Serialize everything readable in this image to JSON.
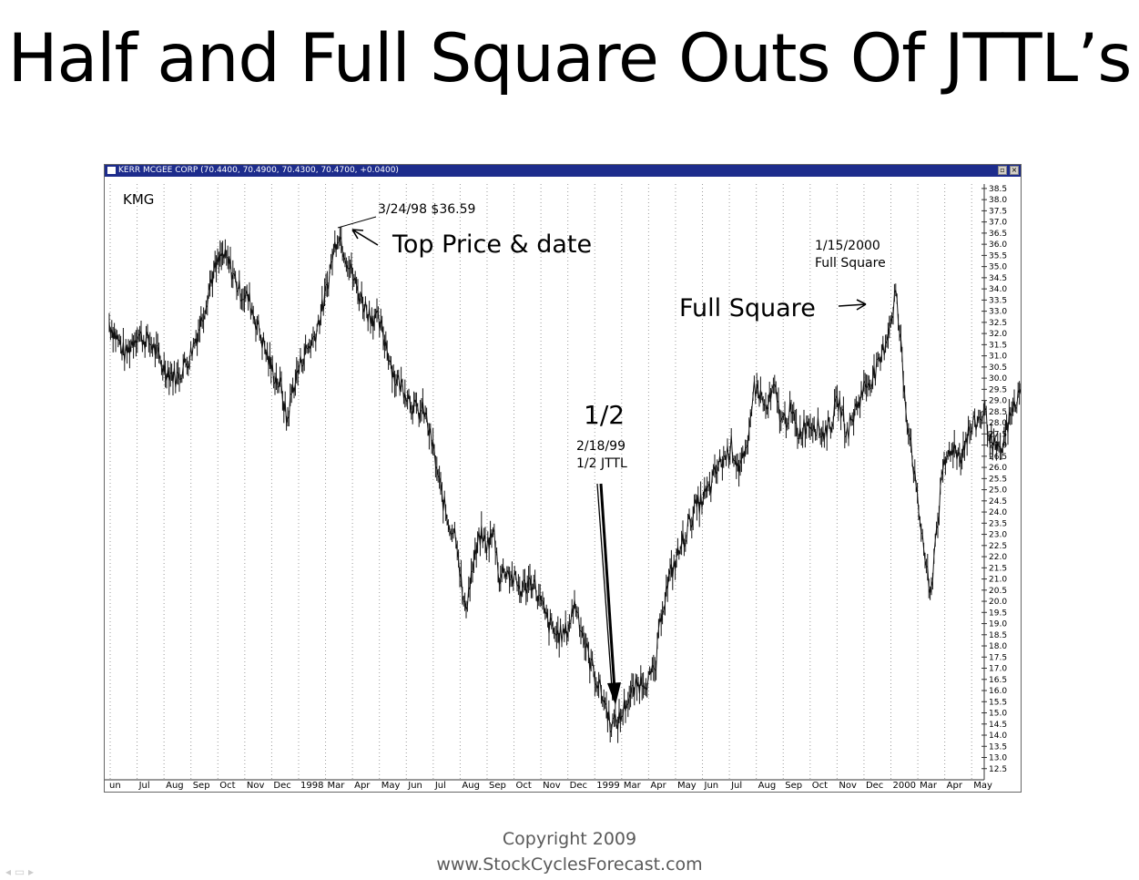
{
  "slide": {
    "title": "Half and Full Square Outs Of JTTL’s",
    "footer_line1": "Copyright 2009",
    "footer_line2": "www.StockCyclesForecast.com"
  },
  "window": {
    "title": "KERR MCGEE CORP (70.4400, 70.4900, 70.4300, 70.4700, +0.0400)"
  },
  "chart_data": {
    "type": "line",
    "symbol": "KMG",
    "x_tick_labels": [
      "un",
      "Jul",
      "Aug",
      "Sep",
      "Oct",
      "Nov",
      "Dec",
      "1998",
      "Mar",
      "Apr",
      "May",
      "Jun",
      "Jul",
      "Aug",
      "Sep",
      "Oct",
      "Nov",
      "Dec",
      "1999",
      "Mar",
      "Apr",
      "May",
      "Jun",
      "Jul",
      "Aug",
      "Sep",
      "Oct",
      "Nov",
      "Dec",
      "2000",
      "Mar",
      "Apr",
      "May"
    ],
    "y_ticks": [
      "38.5",
      "38.0",
      "37.5",
      "37.0",
      "36.5",
      "36.0",
      "35.5",
      "35.0",
      "34.5",
      "34.0",
      "33.5",
      "33.0",
      "32.5",
      "32.0",
      "31.5",
      "31.0",
      "30.5",
      "30.0",
      "29.5",
      "29.0",
      "28.5",
      "28.0",
      "27.5",
      "27.0",
      "26.5",
      "26.0",
      "25.5",
      "25.0",
      "24.5",
      "24.0",
      "23.5",
      "23.0",
      "22.5",
      "22.0",
      "21.5",
      "21.0",
      "20.5",
      "20.0",
      "19.5",
      "19.0",
      "18.5",
      "18.0",
      "17.5",
      "17.0",
      "16.5",
      "16.0",
      "15.5",
      "15.0",
      "14.5",
      "14.0",
      "13.5",
      "13.0",
      "12.5"
    ],
    "ylim": [
      12.0,
      38.7
    ],
    "grid": "vertical-dotted",
    "price_path": [
      [
        0,
        32.5
      ],
      [
        0.6,
        31.0
      ],
      [
        1.0,
        32.0
      ],
      [
        1.6,
        31.5
      ],
      [
        2.0,
        30.5
      ],
      [
        2.5,
        30.0
      ],
      [
        3.0,
        31.0
      ],
      [
        3.4,
        32.5
      ],
      [
        3.8,
        34.5
      ],
      [
        4.2,
        35.5
      ],
      [
        4.5,
        35.0
      ],
      [
        4.8,
        34.0
      ],
      [
        5.2,
        33.5
      ],
      [
        5.6,
        32.0
      ],
      [
        6.0,
        30.5
      ],
      [
        6.4,
        29.5
      ],
      [
        6.6,
        28.0
      ],
      [
        6.8,
        29.5
      ],
      [
        7.2,
        31.0
      ],
      [
        7.6,
        31.8
      ],
      [
        8.0,
        33.5
      ],
      [
        8.3,
        35.5
      ],
      [
        8.5,
        36.6
      ],
      [
        8.8,
        35.5
      ],
      [
        9.2,
        34.0
      ],
      [
        9.6,
        33.0
      ],
      [
        10.0,
        32.5
      ],
      [
        10.3,
        31.5
      ],
      [
        10.6,
        30.0
      ],
      [
        11.0,
        29.5
      ],
      [
        11.4,
        28.5
      ],
      [
        11.7,
        28.5
      ],
      [
        12.0,
        27.0
      ],
      [
        12.3,
        25.0
      ],
      [
        12.6,
        23.5
      ],
      [
        12.9,
        23.0
      ],
      [
        13.1,
        20.5
      ],
      [
        13.2,
        19.5
      ],
      [
        13.5,
        21.5
      ],
      [
        13.8,
        23.0
      ],
      [
        14.0,
        22.5
      ],
      [
        14.3,
        23.0
      ],
      [
        14.5,
        21.0
      ],
      [
        14.7,
        21.5
      ],
      [
        15.0,
        21.0
      ],
      [
        15.3,
        20.5
      ],
      [
        15.7,
        21.0
      ],
      [
        16.0,
        20.0
      ],
      [
        16.3,
        19.0
      ],
      [
        16.6,
        18.5
      ],
      [
        16.9,
        18.5
      ],
      [
        17.1,
        19.0
      ],
      [
        17.3,
        20.0
      ],
      [
        17.5,
        19.0
      ],
      [
        17.8,
        17.5
      ],
      [
        18.1,
        16.5
      ],
      [
        18.4,
        15.5
      ],
      [
        18.6,
        14.6
      ],
      [
        18.8,
        14.5
      ],
      [
        19.0,
        14.8
      ],
      [
        19.2,
        15.5
      ],
      [
        19.5,
        16.0
      ],
      [
        19.8,
        16.5
      ],
      [
        20.1,
        16.5
      ],
      [
        20.3,
        17.0
      ],
      [
        20.5,
        19.5
      ],
      [
        20.8,
        21.0
      ],
      [
        21.1,
        22.0
      ],
      [
        21.4,
        23.0
      ],
      [
        21.7,
        24.0
      ],
      [
        22.0,
        24.5
      ],
      [
        22.3,
        25.0
      ],
      [
        22.6,
        26.0
      ],
      [
        22.9,
        26.5
      ],
      [
        23.1,
        27.0
      ],
      [
        23.4,
        26.0
      ],
      [
        23.7,
        26.5
      ],
      [
        23.9,
        29.5
      ],
      [
        24.1,
        29.5
      ],
      [
        24.4,
        28.5
      ],
      [
        24.7,
        29.5
      ],
      [
        25.0,
        28.0
      ],
      [
        25.3,
        28.5
      ],
      [
        25.6,
        27.5
      ],
      [
        25.9,
        28.0
      ],
      [
        26.2,
        28.0
      ],
      [
        26.5,
        27.5
      ],
      [
        26.8,
        28.0
      ],
      [
        27.1,
        29.0
      ],
      [
        27.4,
        27.5
      ],
      [
        27.7,
        28.5
      ],
      [
        28.0,
        29.5
      ],
      [
        28.3,
        30.0
      ],
      [
        28.6,
        30.5
      ],
      [
        28.9,
        32.0
      ],
      [
        29.1,
        33.0
      ],
      [
        29.2,
        34.0
      ],
      [
        29.4,
        31.5
      ],
      [
        29.6,
        28.5
      ],
      [
        29.8,
        27.0
      ],
      [
        30.0,
        24.5
      ],
      [
        30.2,
        23.0
      ],
      [
        30.4,
        21.0
      ],
      [
        30.5,
        20.0
      ],
      [
        30.7,
        23.0
      ],
      [
        31.0,
        26.0
      ],
      [
        31.3,
        27.0
      ],
      [
        31.6,
        26.5
      ],
      [
        31.9,
        27.5
      ],
      [
        32.2,
        28.0
      ],
      [
        32.5,
        28.5
      ],
      [
        32.8,
        27.0
      ],
      [
        33.1,
        26.5
      ],
      [
        33.4,
        28.0
      ],
      [
        33.7,
        29.0
      ],
      [
        34.0,
        29.5
      ]
    ],
    "annotations": [
      {
        "text": "3/24/98 $36.59"
      },
      {
        "text": "Top Price & date"
      },
      {
        "text": "1/15/2000"
      },
      {
        "text": "Full Square"
      },
      {
        "text": "Full Square"
      },
      {
        "text": "1/2"
      },
      {
        "text": "2/18/99"
      },
      {
        "text": "1/2 JTTL"
      }
    ]
  }
}
